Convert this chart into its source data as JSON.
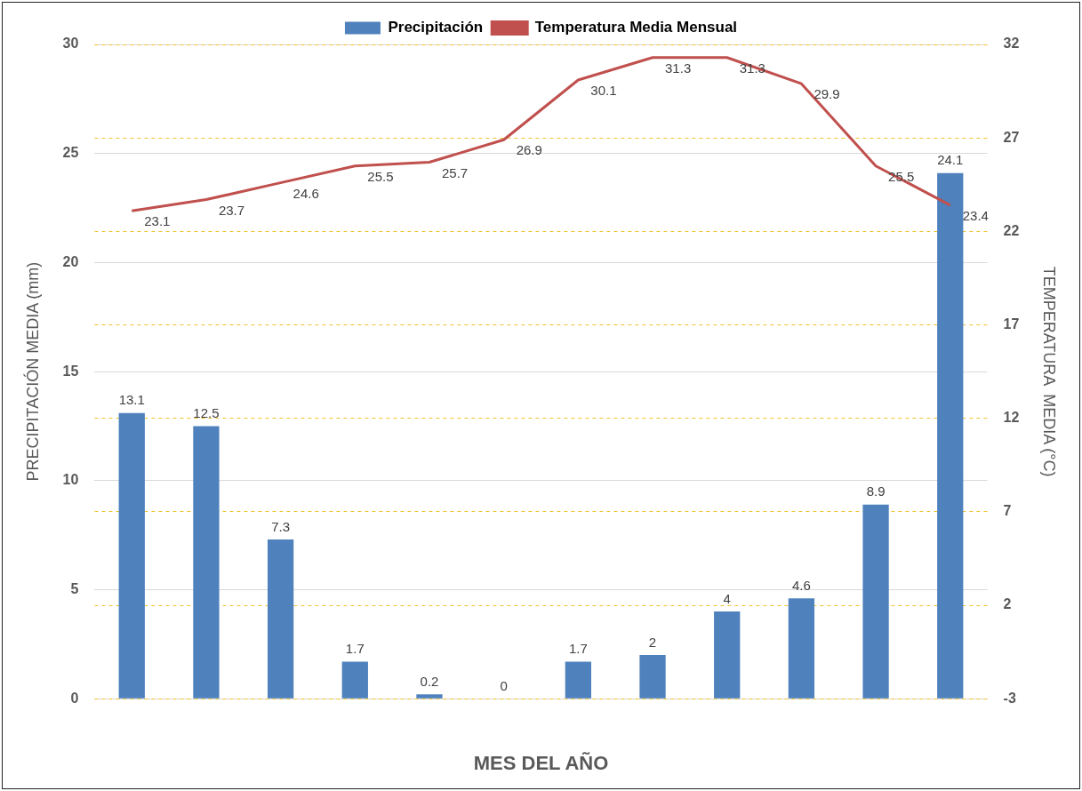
{
  "chart_data": {
    "type": "bar",
    "xlabel": "MES DEL AÑO",
    "ylabel": "PRECIPITACIÓN MEDIA (mm)",
    "y2label": "TEMPERATURA  MEDIA (°C)",
    "categories": [
      null,
      null,
      null,
      null,
      null,
      null,
      null,
      null,
      null,
      null,
      null,
      null
    ],
    "series": [
      {
        "name": "Precipitación",
        "color": "#4f81bd",
        "values": [
          13.1,
          12.5,
          7.3,
          1.7,
          0.2,
          0,
          1.7,
          2,
          4,
          4.6,
          8.9,
          24.1
        ]
      },
      {
        "name": "Temperatura Media Mensual",
        "type": "line",
        "axis": "y2",
        "color": "#c0504d",
        "values": [
          23.1,
          23.7,
          24.6,
          25.5,
          25.7,
          26.9,
          30.1,
          31.3,
          31.3,
          29.9,
          25.5,
          23.4
        ]
      }
    ],
    "ylim": [
      0,
      30
    ],
    "yticks": [
      0,
      5,
      10,
      15,
      20,
      25,
      30
    ],
    "y2lim": [
      -3,
      32
    ],
    "y2ticks": [
      -3,
      2,
      7,
      12,
      17,
      22,
      27,
      32
    ],
    "grid": "y",
    "legend": "top",
    "marker": "none",
    "line_style": "solid",
    "data_labels": true
  }
}
